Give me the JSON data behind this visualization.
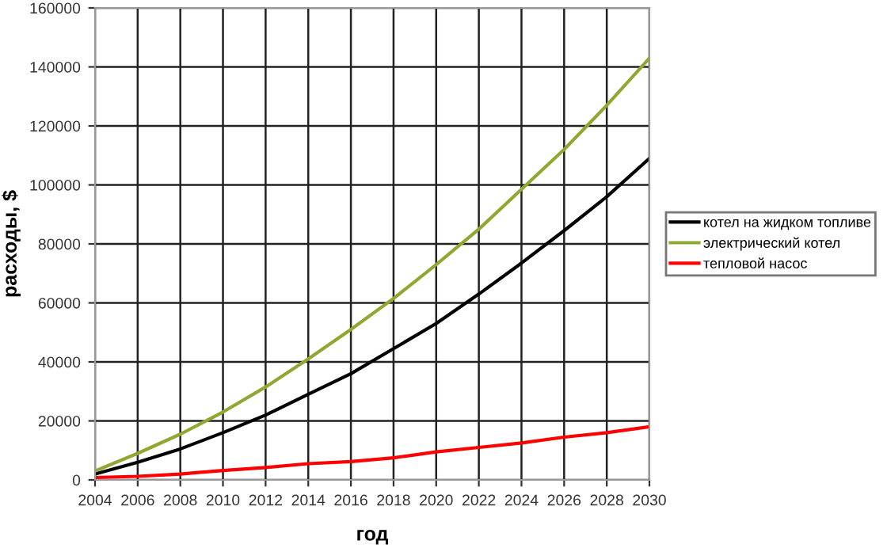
{
  "chart_data": {
    "type": "line",
    "xlabel": "год",
    "ylabel": "расходы, $",
    "x": [
      2004,
      2006,
      2008,
      2010,
      2012,
      2014,
      2016,
      2018,
      2020,
      2022,
      2024,
      2026,
      2028,
      2030
    ],
    "series": [
      {
        "name": "котел на жидком топливе",
        "color": "#000000",
        "values": [
          2000,
          6000,
          10500,
          16000,
          22000,
          29000,
          36000,
          44500,
          53000,
          63000,
          73500,
          84500,
          96000,
          109000
        ]
      },
      {
        "name": "электрический котел",
        "color": "#8fa832",
        "values": [
          3000,
          9000,
          15500,
          23000,
          31500,
          41000,
          51000,
          61500,
          73000,
          85000,
          98500,
          112000,
          127000,
          143000
        ]
      },
      {
        "name": "тепловой насос",
        "color": "#ff0000",
        "values": [
          800,
          1200,
          2000,
          3200,
          4200,
          5500,
          6200,
          7500,
          9500,
          11000,
          12500,
          14500,
          16000,
          18000
        ]
      }
    ],
    "xlim": [
      2004,
      2030
    ],
    "xticks": [
      2004,
      2006,
      2008,
      2010,
      2012,
      2014,
      2016,
      2018,
      2020,
      2022,
      2024,
      2026,
      2028,
      2030
    ],
    "ylim": [
      0,
      160000
    ],
    "yticks": [
      0,
      20000,
      40000,
      60000,
      80000,
      100000,
      120000,
      140000,
      160000
    ],
    "grid": true,
    "legend": "right",
    "marker": "none",
    "line_style": "solid"
  }
}
